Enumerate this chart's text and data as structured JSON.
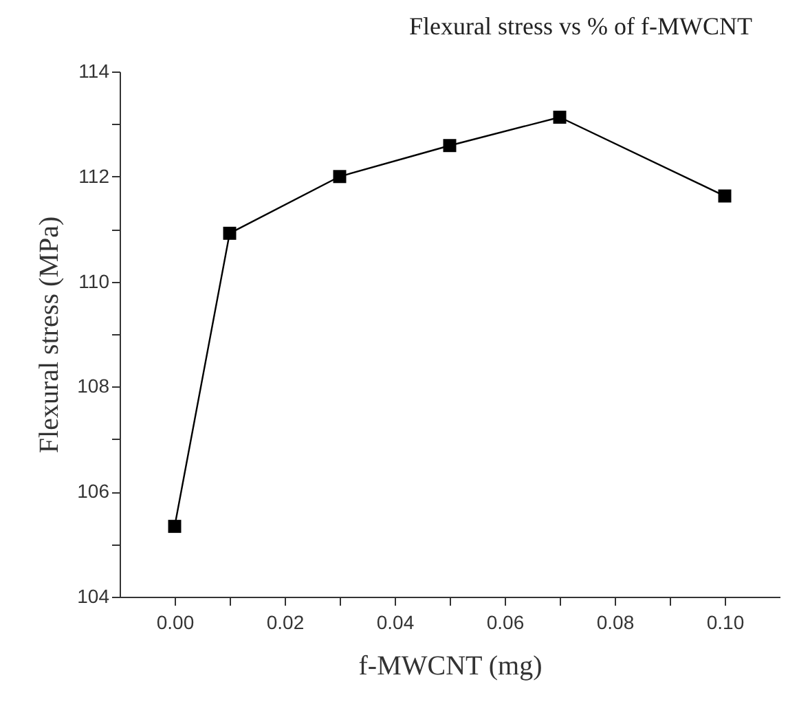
{
  "chart_data": {
    "type": "line",
    "title": "Flexural stress vs % of f-MWCNT",
    "xlabel": "f-MWCNT (mg)",
    "ylabel": "Flexural stress (MPa)",
    "x": [
      0,
      0.01,
      0.03,
      0.05,
      0.07,
      0.1
    ],
    "series": [
      {
        "color": "#000000",
        "values": [
          105.34,
          110.92,
          112.0,
          112.59,
          113.13,
          111.63
        ]
      }
    ],
    "xlim": [
      -0.01,
      0.11
    ],
    "xticks": [
      {
        "value": 0,
        "label": "0.00"
      },
      {
        "value": 0.01,
        "label": null
      },
      {
        "value": 0.02,
        "label": "0.02"
      },
      {
        "value": 0.03,
        "label": null
      },
      {
        "value": 0.04,
        "label": "0.04"
      },
      {
        "value": 0.05,
        "label": null
      },
      {
        "value": 0.06,
        "label": "0.06"
      },
      {
        "value": 0.07,
        "label": null
      },
      {
        "value": 0.08,
        "label": "0.08"
      },
      {
        "value": 0.09,
        "label": null
      },
      {
        "value": 0.1,
        "label": "0.10"
      }
    ],
    "ylim": [
      104,
      114
    ],
    "yticks": [
      104,
      {
        "value": 105,
        "label": null
      },
      106,
      {
        "value": 107,
        "label": null
      },
      108,
      {
        "value": 109,
        "label": null
      },
      110,
      {
        "value": 111,
        "label": null
      },
      112,
      {
        "value": 113,
        "label": null
      },
      114
    ],
    "marker": "square",
    "line_style": "solid"
  }
}
